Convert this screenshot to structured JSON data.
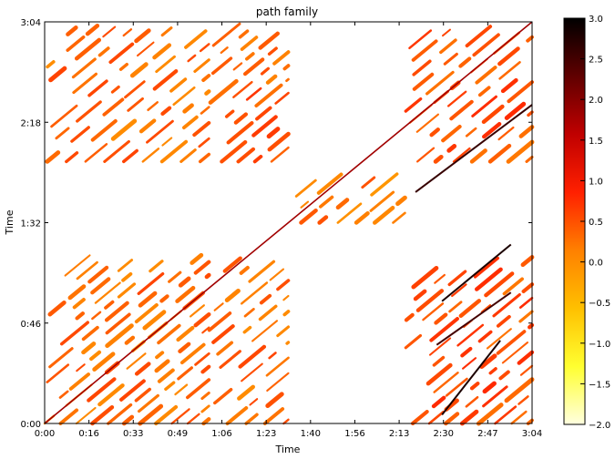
{
  "chart_data": {
    "type": "heatmap",
    "title": "path family",
    "xlabel": "Time",
    "ylabel": "Time",
    "duration_seconds": 184,
    "x_ticks": [
      "0:00",
      "0:16",
      "0:33",
      "0:49",
      "1:06",
      "1:23",
      "1:40",
      "1:56",
      "2:13",
      "2:30",
      "2:47",
      "3:04"
    ],
    "y_ticks": [
      "0:00",
      "0:46",
      "1:32",
      "2:18",
      "3:04"
    ],
    "colorbar": {
      "min": -2.0,
      "max": 3.0,
      "ticks": [
        "3.0",
        "2.5",
        "2.0",
        "1.5",
        "1.0",
        "0.5",
        "0.0",
        "−0.5",
        "−1.0",
        "−1.5",
        "−2.0"
      ],
      "colormap": [
        "#ffffe0",
        "#ffff30",
        "#ffc000",
        "#ff8000",
        "#ff2000",
        "#c00000",
        "#600000",
        "#000000"
      ]
    },
    "regions": [
      {
        "x_range": [
          0,
          62
        ],
        "y_range": [
          0,
          78
        ],
        "value": 0.3
      },
      {
        "x_range": [
          62,
          92
        ],
        "y_range": [
          0,
          78
        ],
        "value": 0.3
      },
      {
        "x_range": [
          136,
          184
        ],
        "y_range": [
          0,
          78
        ],
        "value": 0.5
      },
      {
        "x_range": [
          92,
          136
        ],
        "y_range": [
          92,
          115
        ],
        "value": 0.2
      },
      {
        "x_range": [
          0,
          62
        ],
        "y_range": [
          120,
          184
        ],
        "value": 0.3
      },
      {
        "x_range": [
          62,
          92
        ],
        "y_range": [
          120,
          184
        ],
        "value": 0.4
      },
      {
        "x_range": [
          136,
          184
        ],
        "y_range": [
          120,
          184
        ],
        "value": 0.5
      }
    ],
    "strong_paths": [
      {
        "from": [
          150,
          4
        ],
        "to": [
          172,
          38
        ],
        "value": 2.8
      },
      {
        "from": [
          148,
          36
        ],
        "to": [
          176,
          60
        ],
        "value": 2.5
      },
      {
        "from": [
          150,
          56
        ],
        "to": [
          176,
          82
        ],
        "value": 2.8
      },
      {
        "from": [
          140,
          106
        ],
        "to": [
          184,
          146
        ],
        "value": 2.6
      }
    ]
  }
}
